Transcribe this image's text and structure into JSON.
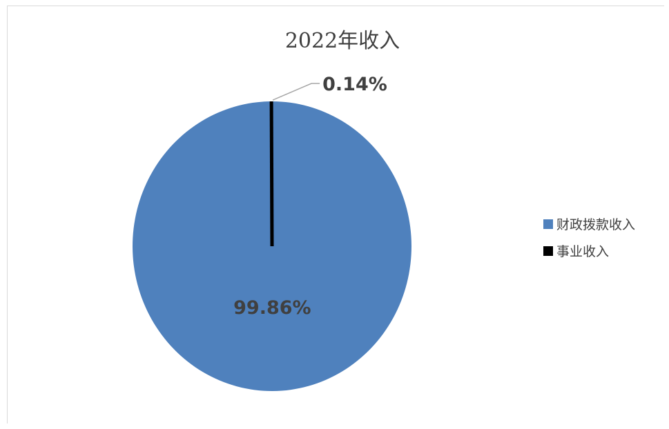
{
  "chart_data": {
    "type": "pie",
    "title": "2022年收入",
    "categories": [
      "财政拨款收入",
      "事业收入"
    ],
    "values": [
      99.86,
      0.14
    ],
    "data_labels": [
      "99.86%",
      "0.14%"
    ],
    "colors": [
      "#4f81bd",
      "#000000"
    ],
    "legend_position": "right"
  }
}
